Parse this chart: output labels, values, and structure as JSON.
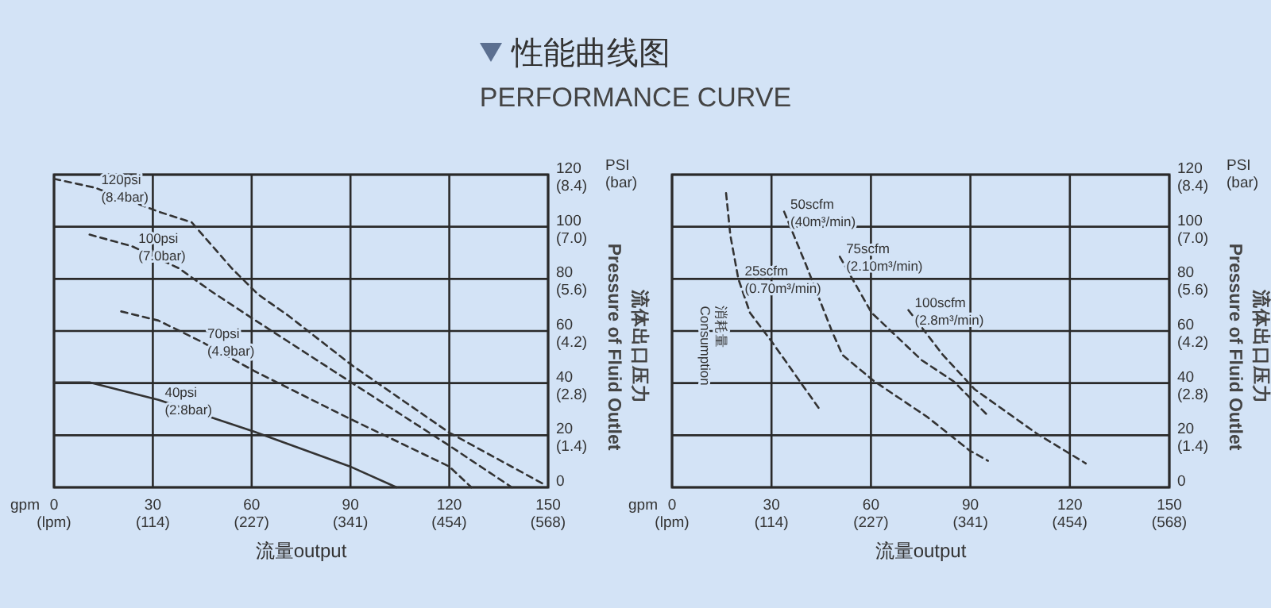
{
  "chart_data": [
    {
      "type": "line",
      "title": "性能曲线图",
      "subtitle": "PERFORMANCE CURVE",
      "xlabel": "流量output",
      "y2label": "流体出口压力\nPressure of Fluid Outlet",
      "xlim": [
        0,
        150
      ],
      "ylim": [
        0,
        120
      ],
      "xticks": [
        0,
        30,
        60,
        90,
        120,
        150
      ],
      "yticks": [
        0,
        20,
        40,
        60,
        80,
        100,
        120
      ],
      "x2lim": [
        0,
        567.8
      ],
      "x2ticks": [
        {
          "value": 0,
          "label": "(lpm)"
        },
        {
          "value": 113.6,
          "label": "(114)"
        },
        {
          "value": 227.1,
          "label": "(227)"
        },
        {
          "value": 340.7,
          "label": "(341)"
        },
        {
          "value": 454.2,
          "label": "(454)"
        },
        {
          "value": 567.8,
          "label": "(568)"
        }
      ],
      "y2lim": [
        0,
        8.4
      ],
      "y2ticks": [
        {
          "value": 1.4,
          "label": "(1.4)"
        },
        {
          "value": 2.8,
          "label": "(2.8)"
        },
        {
          "value": 4.2,
          "label": "(4.2)"
        },
        {
          "value": 5.6,
          "label": "(5.6)"
        },
        {
          "value": 7.0,
          "label": "(7.0)"
        },
        {
          "value": 8.4,
          "label": "(8.4)"
        }
      ],
      "grid": true,
      "series": [
        {
          "color": "#333333",
          "line_style": "dashed",
          "x": [
            0,
            12.4,
            31.7,
            41.8,
            54,
            62,
            71,
            90.5,
            120,
            149
          ],
          "values": [
            118.4,
            115,
            105.8,
            101.7,
            84,
            74,
            66,
            46.8,
            21,
            1
          ]
        },
        {
          "color": "#333333",
          "line_style": "dashed",
          "x": [
            10.8,
            23.7,
            38,
            48,
            60,
            89.7,
            120,
            139
          ],
          "values": [
            97,
            92.5,
            84,
            75,
            65,
            40.7,
            16,
            0
          ]
        },
        {
          "color": "#333333",
          "line_style": "dashed",
          "x": [
            20.4,
            31.7,
            44.6,
            60.7,
            89.7,
            120,
            126.7
          ],
          "values": [
            67.5,
            64,
            56,
            44.7,
            26.4,
            8,
            0
          ]
        },
        {
          "color": "#333333",
          "line_style": "solid",
          "x": [
            0,
            10.8,
            31.7,
            60.7,
            89.7,
            104
          ],
          "values": [
            40.3,
            40.3,
            33.6,
            21.4,
            8.1,
            0
          ]
        }
      ],
      "annotations": [
        "gpm",
        "PSI\n(bar)",
        {
          "text": "120psi\n(8.4bar)",
          "x": 12.4,
          "y": 115
        },
        {
          "text": "100psi\n(7.0bar)",
          "x": 23.7,
          "y": 92.5
        },
        {
          "text": "70psi\n(4.9bar)",
          "x": 44.6,
          "y": 56
        },
        {
          "text": "40psi\n(2.8bar)",
          "x": 31.7,
          "y": 33.6
        }
      ]
    },
    {
      "type": "line",
      "xlabel": "流量output",
      "y2label": "流体出口压力\nPressure of Fluid Outlet",
      "xlim": [
        0,
        150
      ],
      "ylim": [
        0,
        120
      ],
      "xticks": [
        0,
        30,
        60,
        90,
        120,
        150
      ],
      "yticks": [
        0,
        20,
        40,
        60,
        80,
        100,
        120
      ],
      "x2lim": [
        0,
        567.8
      ],
      "x2ticks": [
        {
          "value": 0,
          "label": "(lpm)"
        },
        {
          "value": 113.6,
          "label": "(114)"
        },
        {
          "value": 227.1,
          "label": "(227)"
        },
        {
          "value": 340.7,
          "label": "(341)"
        },
        {
          "value": 454.2,
          "label": "(454)"
        },
        {
          "value": 567.8,
          "label": "(568)"
        }
      ],
      "y2lim": [
        0,
        8.4
      ],
      "y2ticks": [
        {
          "value": 1.4,
          "label": "(1.4)"
        },
        {
          "value": 2.8,
          "label": "(2.8)"
        },
        {
          "value": 4.2,
          "label": "(4.2)"
        },
        {
          "value": 5.6,
          "label": "(5.6)"
        },
        {
          "value": 7.0,
          "label": "(7.0)"
        },
        {
          "value": 8.4,
          "label": "(8.4)"
        }
      ],
      "grid": true,
      "series": [
        {
          "color": "#333333",
          "line_style": "dashed",
          "x": [
            16.3,
            17.6,
            20,
            23.5,
            30.6,
            44.2
          ],
          "values": [
            112.9,
            96.6,
            80,
            67,
            55,
            30.5
          ]
        },
        {
          "color": "#333333",
          "line_style": "dashed",
          "x": [
            33.8,
            40.4,
            48.2,
            51.4,
            61,
            77,
            89.7,
            95.3
          ],
          "values": [
            105.8,
            85.4,
            60,
            50.8,
            40.7,
            27,
            14.2,
            10.2
          ]
        },
        {
          "color": "#333333",
          "line_style": "dashed",
          "x": [
            50.6,
            60.2,
            75.3,
            84.9,
            95.3
          ],
          "values": [
            88.5,
            67,
            48.8,
            40.7,
            27.5
          ]
        },
        {
          "color": "#333333",
          "line_style": "dashed",
          "x": [
            71.3,
            81.7,
            91.3,
            110.4,
            124.8
          ],
          "values": [
            68,
            50.8,
            37.6,
            20.3,
            9.2
          ]
        }
      ],
      "annotations": [
        "gpm",
        "PSI\n(bar)",
        "消耗量\nConsumption",
        {
          "text": "25scfm\n(0.70m³/min)",
          "x": 20,
          "y": 80
        },
        {
          "text": "50scfm\n(40m³/min)",
          "x": 33.8,
          "y": 105.8
        },
        {
          "text": "75scfm\n(2.10m³/min)",
          "x": 50.6,
          "y": 88.5
        },
        {
          "text": "100scfm\n(2.8m³/min)",
          "x": 71.3,
          "y": 68
        }
      ]
    }
  ]
}
